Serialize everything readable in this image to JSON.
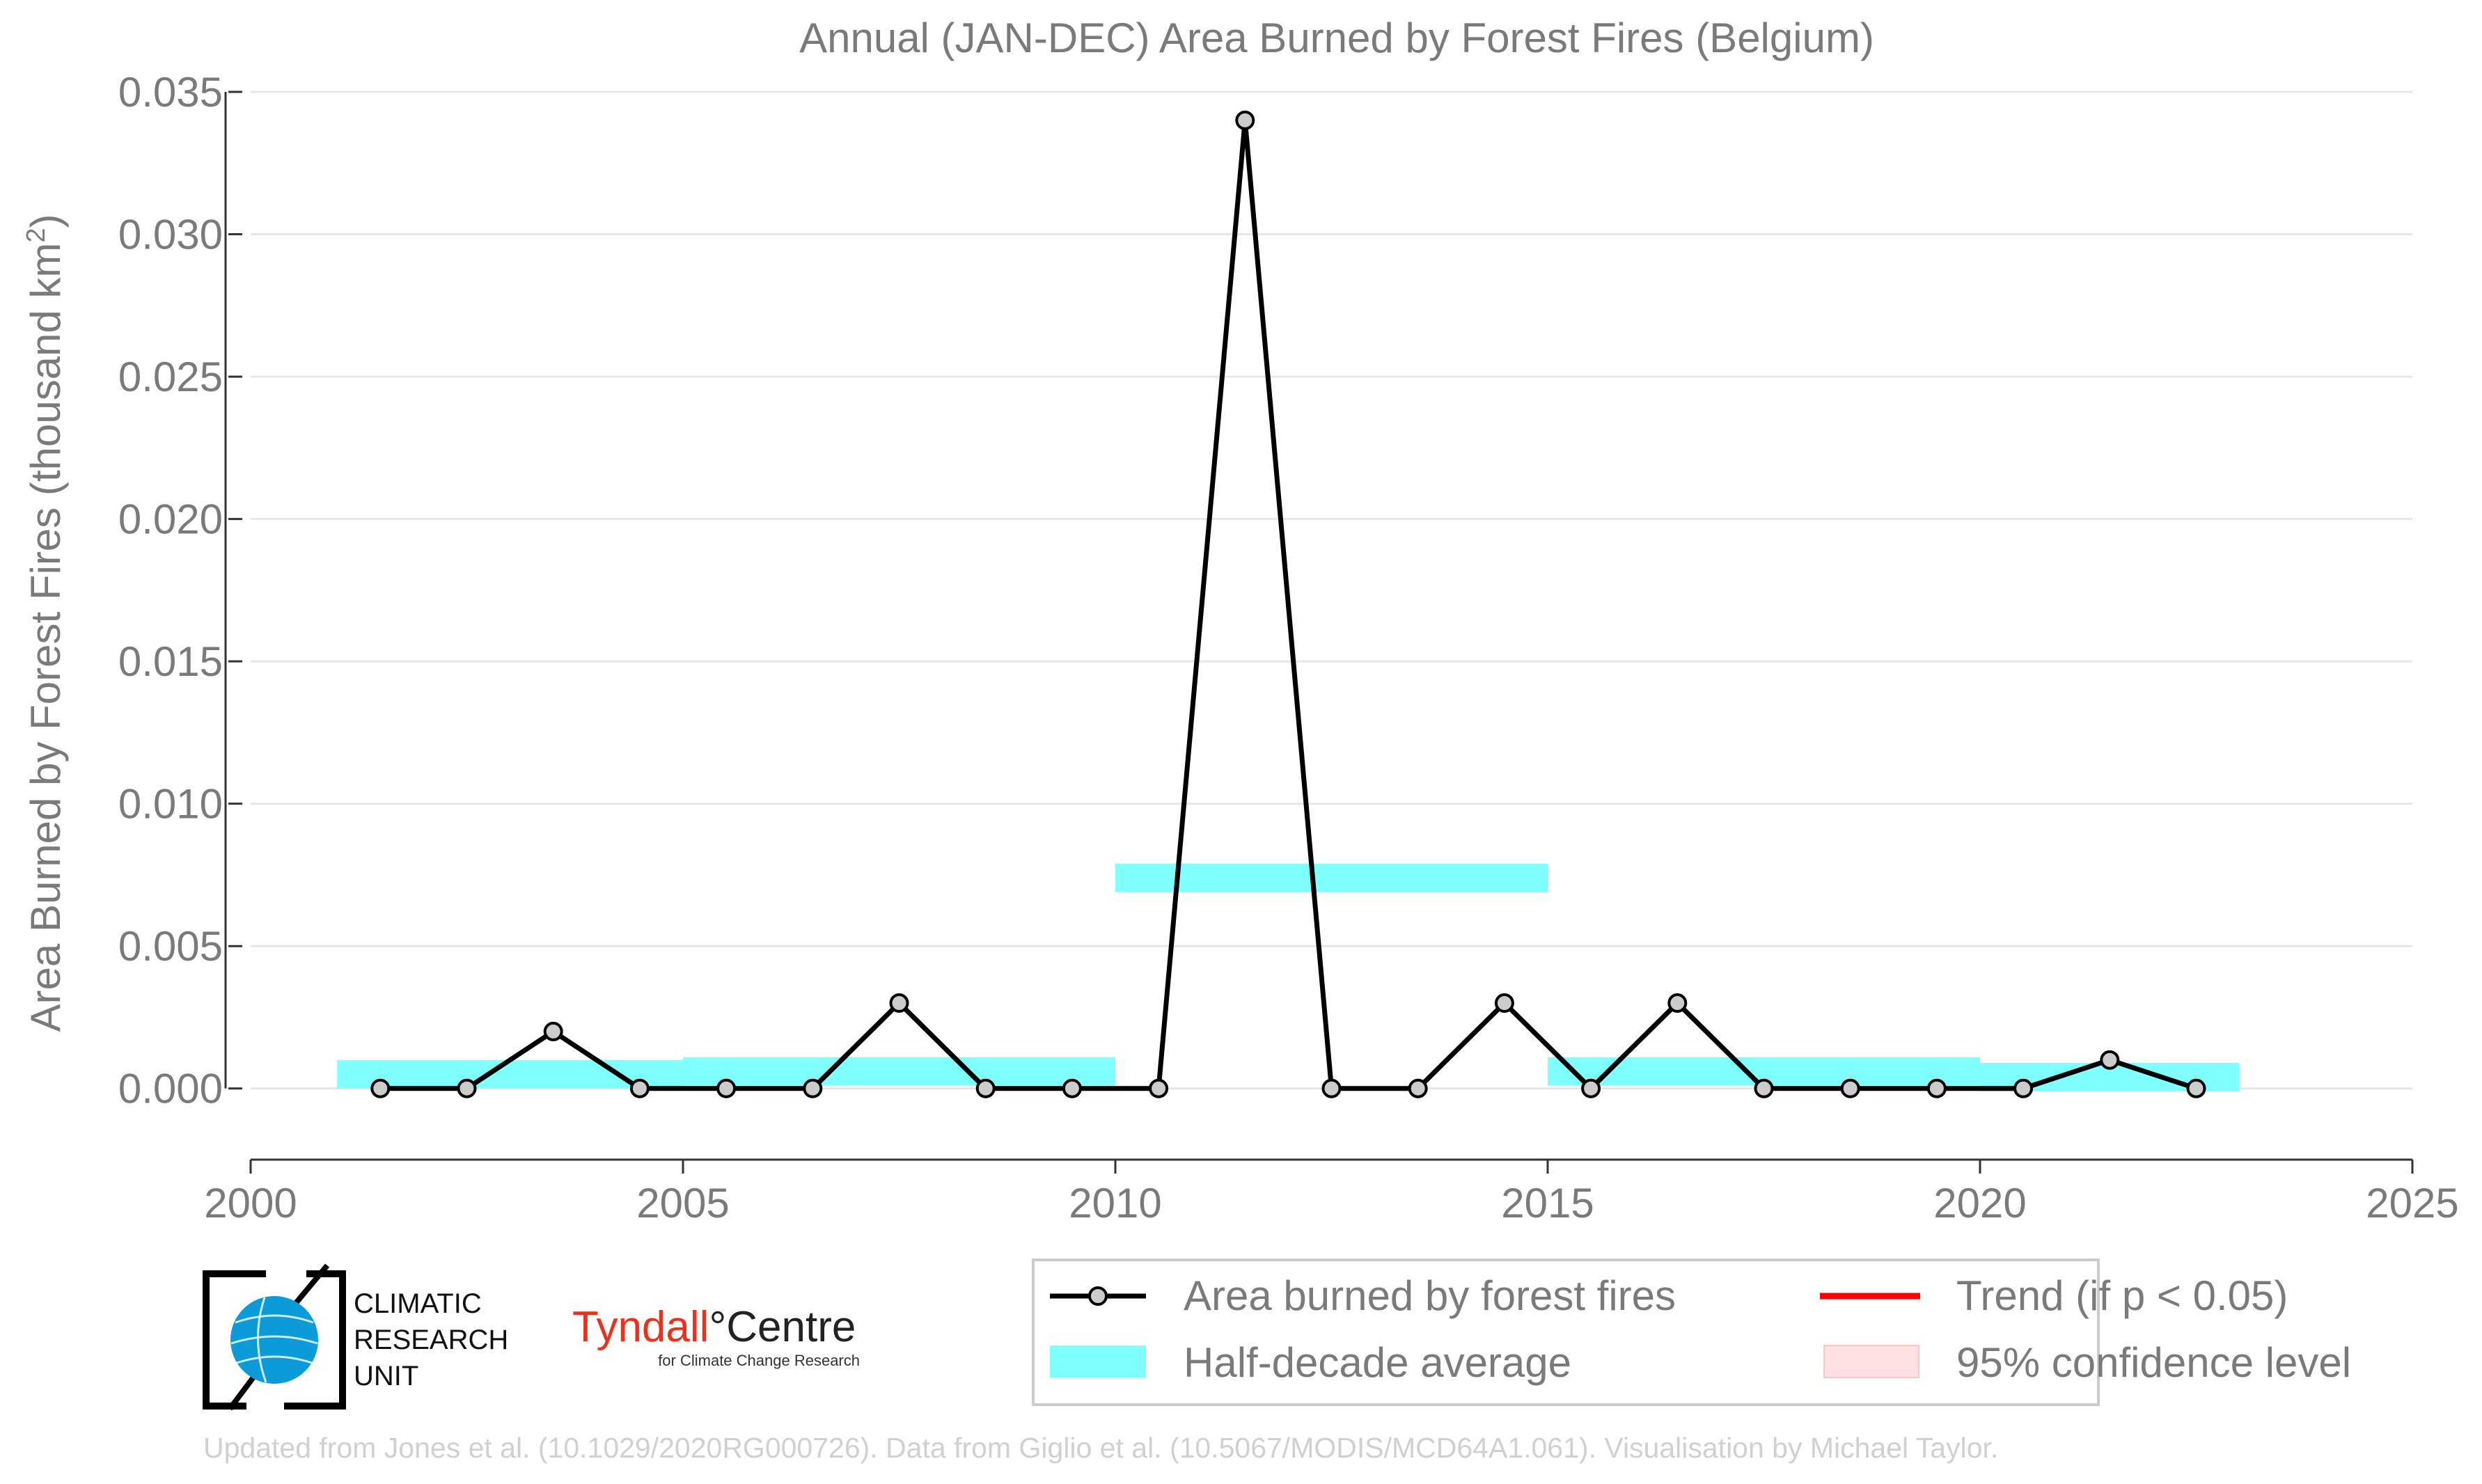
{
  "chart_data": {
    "type": "line",
    "title": "Annual (JAN-DEC) Area Burned by Forest Fires (Belgium)",
    "ylabel_main": "Area Burned by Forest Fires (thousand km",
    "ylabel_sup": "2",
    "ylabel_end": ")",
    "xlim": [
      2000,
      2025
    ],
    "ylim": [
      -0.0025,
      0.035
    ],
    "x_ticks": [
      2000,
      2005,
      2010,
      2015,
      2020,
      2025
    ],
    "x_tick_labels": [
      "2000",
      "2005",
      "2010",
      "2015",
      "2020",
      "2025"
    ],
    "y_ticks": [
      0,
      0.005,
      0.01,
      0.015,
      0.02,
      0.025,
      0.03,
      0.035
    ],
    "y_tick_labels": [
      "0.000",
      "0.005",
      "0.010",
      "0.015",
      "0.020",
      "0.025",
      "0.030",
      "0.035"
    ],
    "grid": true,
    "series": [
      {
        "name": "Area burned by forest fires",
        "color": "#000000",
        "marker_fill": "#cccccc",
        "x": [
          2001.5,
          2002.5,
          2003.5,
          2004.5,
          2005.5,
          2006.5,
          2007.5,
          2008.5,
          2009.5,
          2010.5,
          2011.5,
          2012.5,
          2013.5,
          2014.5,
          2015.5,
          2016.5,
          2017.5,
          2018.5,
          2019.5,
          2020.5,
          2021.5,
          2022.5
        ],
        "y": [
          0,
          0,
          0.002,
          0,
          0,
          0,
          0.003,
          0,
          0,
          0,
          0.034,
          0,
          0,
          0.003,
          0,
          0.003,
          0,
          0,
          0,
          0,
          0.001,
          0
        ]
      }
    ],
    "half_decade_average": {
      "name": "Half-decade average",
      "color": "#80ffff",
      "segments": [
        {
          "x_start": 2001,
          "x_end": 2005,
          "y_low": 0.0,
          "y_high": 0.001
        },
        {
          "x_start": 2005,
          "x_end": 2010,
          "y_low": 0.0001,
          "y_high": 0.0011
        },
        {
          "x_start": 2010,
          "x_end": 2015,
          "y_low": 0.0069,
          "y_high": 0.0079
        },
        {
          "x_start": 2015,
          "x_end": 2020,
          "y_low": 0.0001,
          "y_high": 0.0011
        },
        {
          "x_start": 2020,
          "x_end": 2023,
          "y_low": -0.0001,
          "y_high": 0.0009
        }
      ]
    },
    "legend": {
      "placement": "bottom-right",
      "entries": [
        {
          "label": "Area burned by forest fires",
          "kind": "line-marker",
          "color": "#000000"
        },
        {
          "label": "Trend (if p < 0.05)",
          "kind": "line",
          "color": "#ff0000"
        },
        {
          "label": "Half-decade average",
          "kind": "band",
          "color": "#80ffff"
        },
        {
          "label": "95% confidence level",
          "kind": "band",
          "color": "#ffe0e0"
        }
      ]
    }
  },
  "logos": {
    "cru_line1": "CLIMATIC",
    "cru_line2": "RESEARCH",
    "cru_line3": "UNIT",
    "tyndall_name": "Tyndall",
    "tyndall_degree": "°",
    "tyndall_centre": "Centre",
    "tyndall_sub": "for Climate Change Research"
  },
  "credit": "Updated from Jones et al. (10.1029/2020RG000726). Data from Giglio et al. (10.5067/MODIS/MCD64A1.061). Visualisation by Michael Taylor."
}
